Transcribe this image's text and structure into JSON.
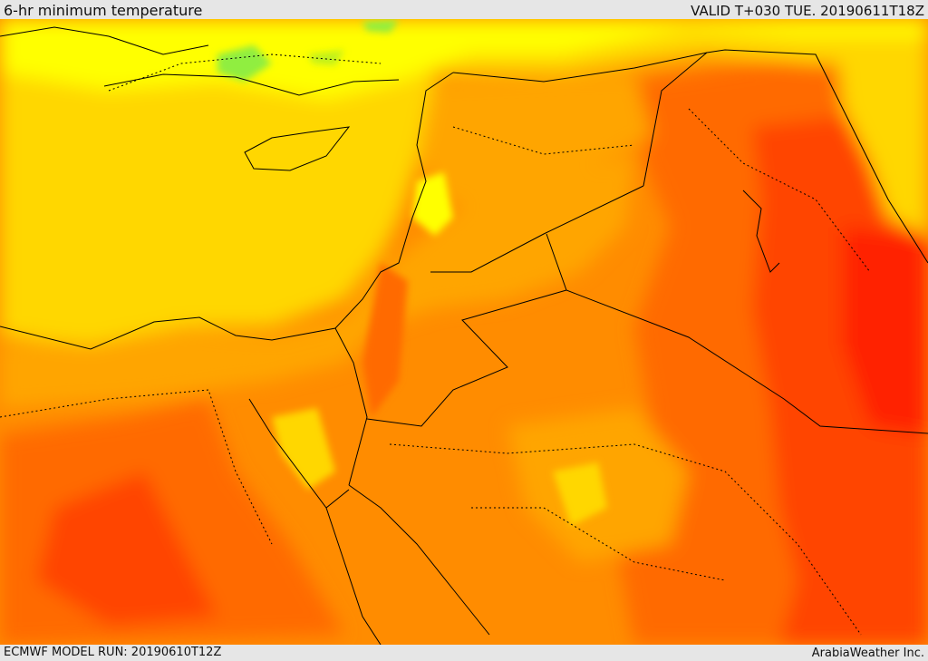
{
  "header": {
    "title": "6-hr minimum temperature",
    "valid": "VALID T+030 TUE. 20190611T18Z"
  },
  "footer": {
    "model_run": "ECMWF MODEL RUN: 20190610T12Z",
    "credit": "ArabiaWeather Inc."
  },
  "colors": {
    "pale_yellow": "#ffff00",
    "yellow_green": "#bff01a",
    "green": "#90ee40",
    "gold": "#ffd700",
    "amber": "#ffa500",
    "orange": "#ff8c00",
    "dark_orange": "#ff6a00",
    "red_orange": "#ff4500",
    "red": "#ff2200",
    "border_line": "#000000"
  }
}
